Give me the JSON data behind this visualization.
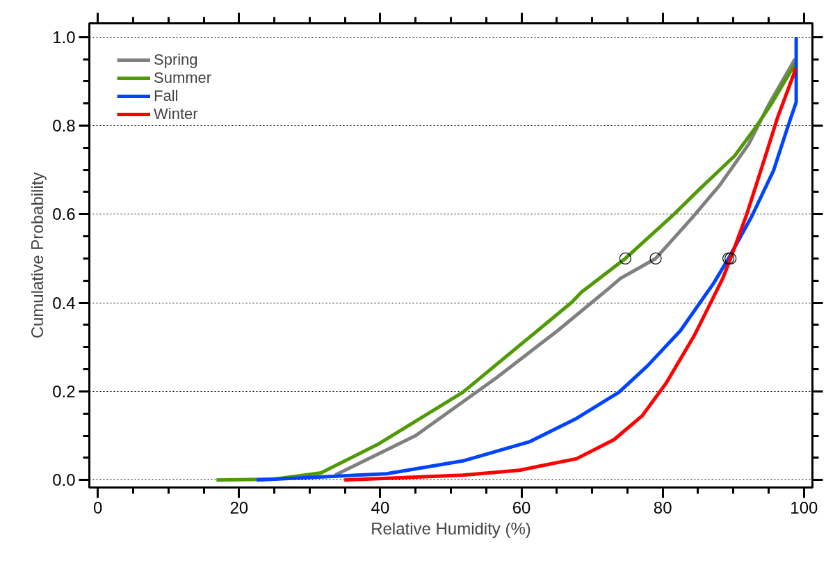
{
  "chart_data": {
    "type": "line",
    "xlabel": "Relative Humidity (%)",
    "ylabel": "Cumulative Probability",
    "xlim": [
      -1.2,
      101.2
    ],
    "ylim": [
      -0.017,
      1.031
    ],
    "xticks": [
      0,
      {
        "value": 5,
        "label": null
      },
      {
        "value": 10,
        "label": null
      },
      {
        "value": 15,
        "label": null
      },
      20,
      {
        "value": 25,
        "label": null
      },
      {
        "value": 30,
        "label": null
      },
      {
        "value": 35,
        "label": null
      },
      40,
      {
        "value": 45,
        "label": null
      },
      {
        "value": 50,
        "label": null
      },
      {
        "value": 55,
        "label": null
      },
      60,
      {
        "value": 65,
        "label": null
      },
      {
        "value": 70,
        "label": null
      },
      {
        "value": 75,
        "label": null
      },
      80,
      {
        "value": 85,
        "label": null
      },
      {
        "value": 90,
        "label": null
      },
      {
        "value": 95,
        "label": null
      },
      100
    ],
    "yticks": [
      {
        "value": 0,
        "label": "0.0"
      },
      {
        "value": 0.05,
        "label": null
      },
      {
        "value": 0.1,
        "label": null
      },
      {
        "value": 0.15,
        "label": null
      },
      0.2,
      {
        "value": 0.25,
        "label": null
      },
      {
        "value": 0.3,
        "label": null
      },
      {
        "value": 0.35,
        "label": null
      },
      0.4,
      {
        "value": 0.45,
        "label": null
      },
      {
        "value": 0.5,
        "label": null
      },
      {
        "value": 0.55,
        "label": null
      },
      0.6,
      {
        "value": 0.65,
        "label": null
      },
      {
        "value": 0.7,
        "label": null
      },
      {
        "value": 0.75,
        "label": null
      },
      0.8,
      {
        "value": 0.85,
        "label": null
      },
      {
        "value": 0.9,
        "label": null
      },
      {
        "value": 0.95,
        "label": null
      },
      {
        "value": 1,
        "label": "1.0"
      }
    ],
    "grid": "y",
    "legend": "top left",
    "marker": "none",
    "line_style": "solid",
    "series": [
      {
        "name": "Spring",
        "color": "#808080",
        "x": [
          33.6,
          45,
          56.4,
          65.1,
          72.4,
          74,
          79,
          84,
          88.1,
          92.2,
          95,
          98.75
        ],
        "values": [
          0.011,
          0.1,
          0.23,
          0.337,
          0.433,
          0.455,
          0.5,
          0.589,
          0.666,
          0.759,
          0.847,
          0.951
        ]
      },
      {
        "name": "Summer",
        "color": "#4f9a06",
        "x": [
          16.8,
          25,
          31.6,
          39.6,
          51.7,
          67.1,
          68.5,
          74.7,
          81.6,
          85.3,
          90.2,
          93.2,
          95.3,
          98.75
        ],
        "values": [
          0,
          0.002,
          0.016,
          0.08,
          0.198,
          0.401,
          0.424,
          0.5,
          0.6,
          0.658,
          0.732,
          0.797,
          0.847,
          0.94
        ]
      },
      {
        "name": "Fall",
        "color": "#0044ff",
        "x": [
          22.5,
          40.9,
          51.7,
          61.1,
          67.8,
          73.8,
          77.8,
          82.5,
          87.2,
          89.3,
          92.6,
          95.7,
          97.7,
          98.9,
          98.9
        ],
        "values": [
          0,
          0.014,
          0.043,
          0.086,
          0.139,
          0.198,
          0.257,
          0.337,
          0.444,
          0.5,
          0.595,
          0.699,
          0.797,
          0.853,
          1.0
        ]
      },
      {
        "name": "Winter",
        "color": "#ff0000",
        "x": [
          34.9,
          51.7,
          59.7,
          67.8,
          73.1,
          77.1,
          80.5,
          84.5,
          88.5,
          89.6,
          91.9,
          93.9,
          96.3,
          98.6,
          98.75
        ],
        "values": [
          0,
          0.011,
          0.022,
          0.048,
          0.091,
          0.145,
          0.219,
          0.327,
          0.455,
          0.5,
          0.6,
          0.699,
          0.82,
          0.918,
          0.93
        ]
      },
      {
        "type": "scatter",
        "marker": "circle",
        "color": "#000000",
        "x": [
          74.7,
          79,
          89.3,
          89.6
        ],
        "values": [
          0.5,
          0.5,
          0.5,
          0.5
        ]
      }
    ]
  }
}
